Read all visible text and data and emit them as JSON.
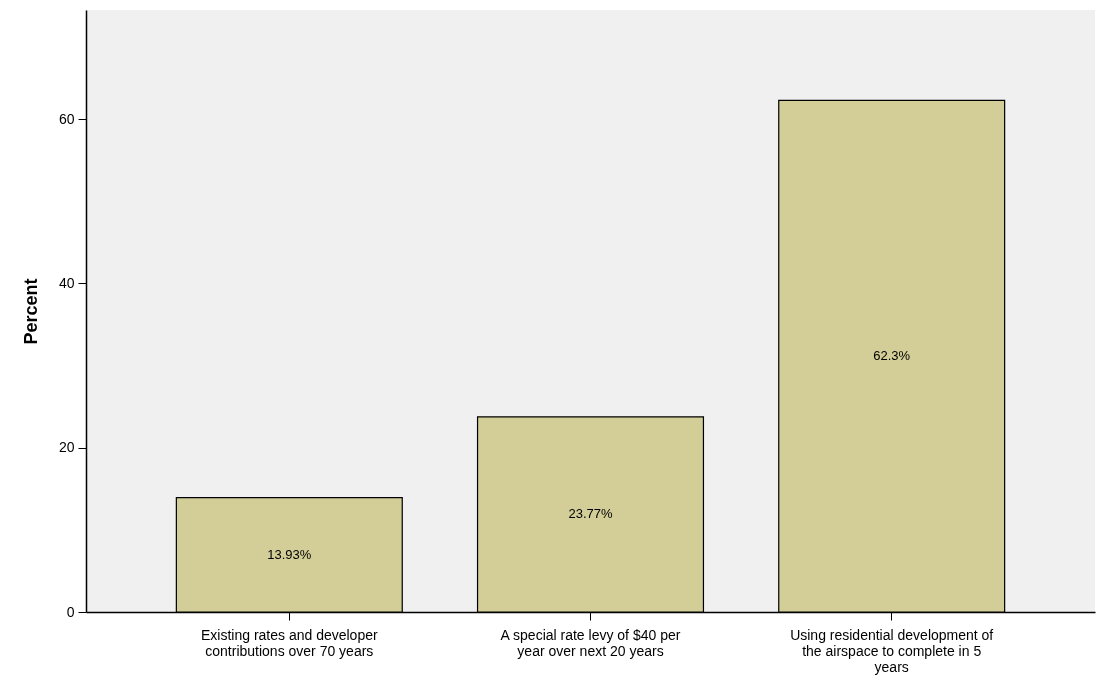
{
  "chart_data": {
    "type": "bar",
    "ylabel": "Percent",
    "categories": [
      "Existing rates and developer contributions over 70 years",
      "A special rate levy of $40 per year over next 20 years",
      "Using residential development of the airspace to complete in 5 years"
    ],
    "values": [
      13.93,
      23.77,
      62.3
    ],
    "value_labels": [
      "13.93%",
      "23.77%",
      "62.3%"
    ],
    "color": "#d3ce97",
    "ylim": [
      0,
      73.3
    ],
    "yticks": [
      0,
      20,
      40,
      60
    ],
    "grid": false
  }
}
